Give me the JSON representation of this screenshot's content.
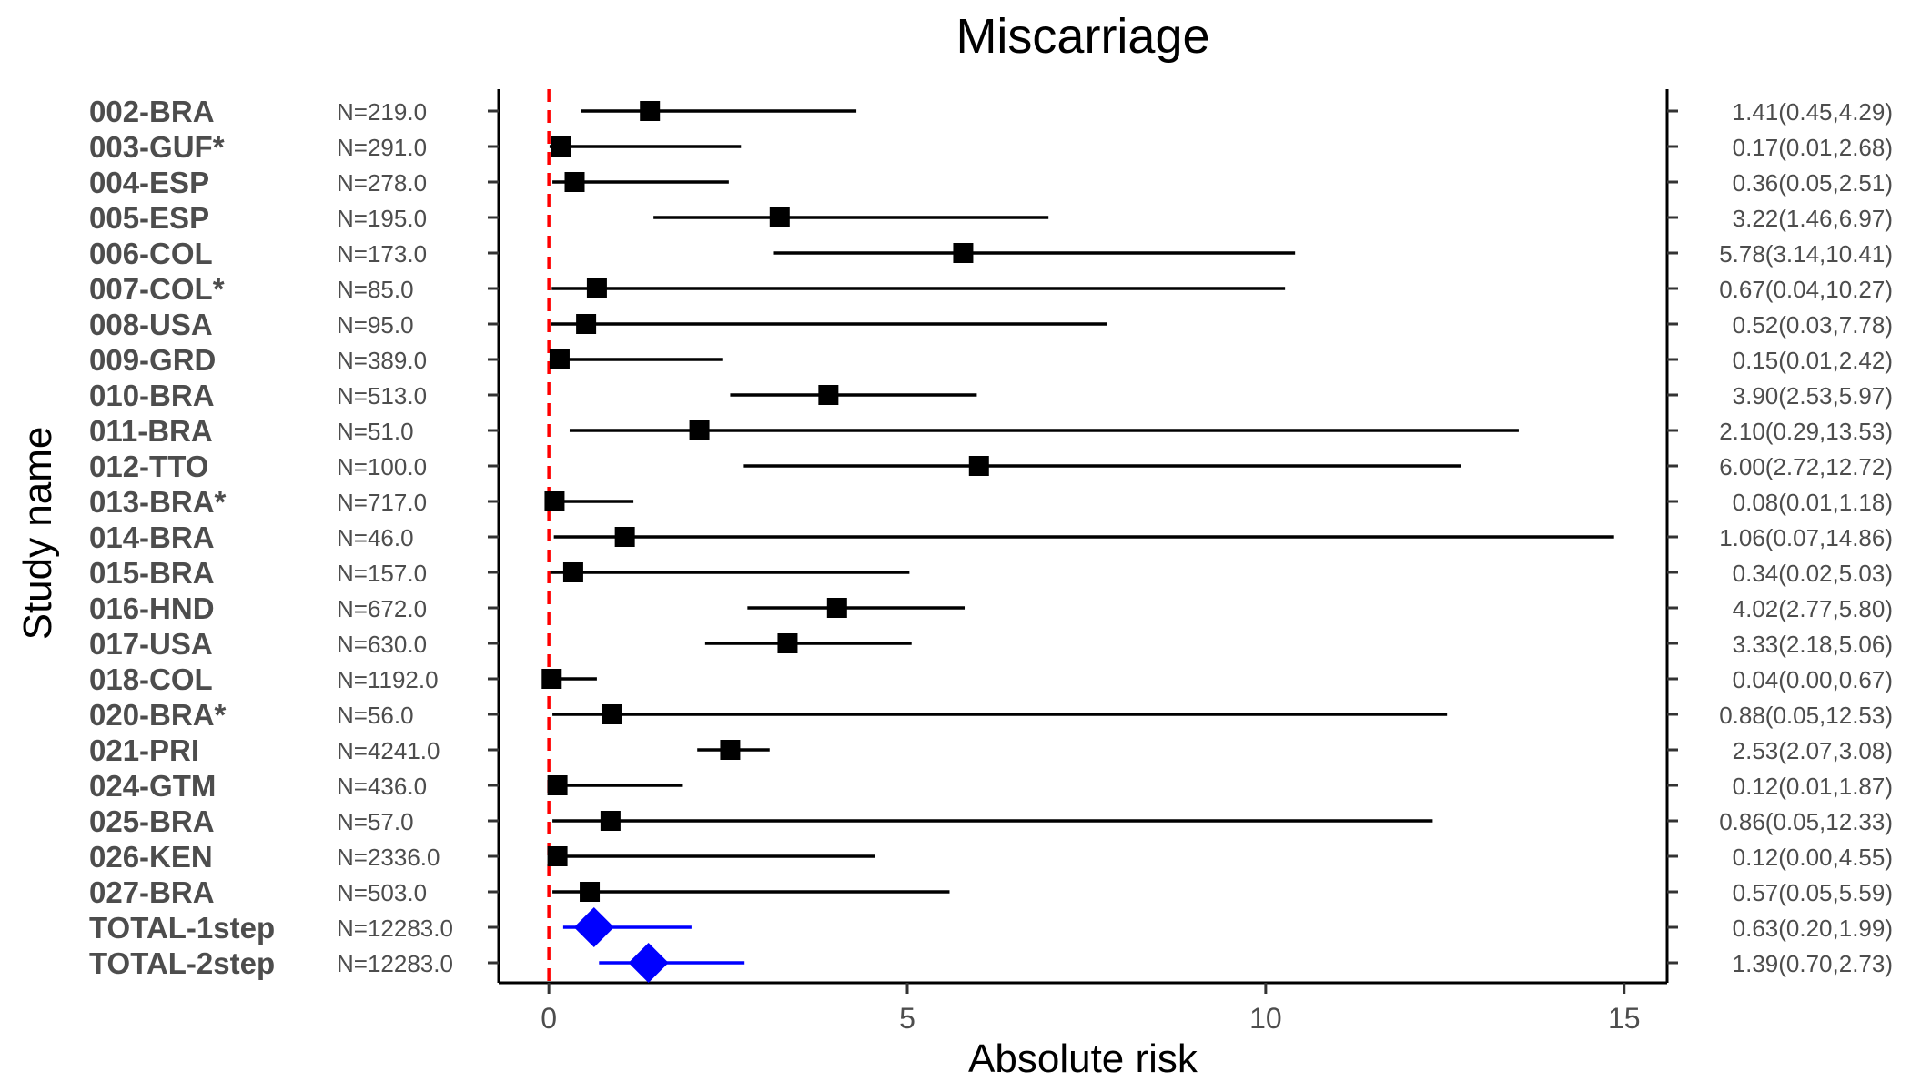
{
  "chart_data": {
    "type": "forest",
    "title": "Miscarriage",
    "xlabel": "Absolute risk",
    "ylabel": "Study name",
    "xlim": [
      -0.7,
      15.6
    ],
    "xticks": [
      "0",
      "5",
      "10",
      "15"
    ],
    "reference_line": 0,
    "colors": {
      "study": "#000000",
      "total": "#0000ff",
      "reference": "#ff0000"
    },
    "studies": [
      {
        "name": "002-BRA",
        "n": "N=219.0",
        "est": 1.41,
        "lo": 0.45,
        "hi": 4.29,
        "label": "1.41(0.45,4.29)"
      },
      {
        "name": "003-GUF*",
        "n": "N=291.0",
        "est": 0.17,
        "lo": 0.01,
        "hi": 2.68,
        "label": "0.17(0.01,2.68)"
      },
      {
        "name": "004-ESP",
        "n": "N=278.0",
        "est": 0.36,
        "lo": 0.05,
        "hi": 2.51,
        "label": "0.36(0.05,2.51)"
      },
      {
        "name": "005-ESP",
        "n": "N=195.0",
        "est": 3.22,
        "lo": 1.46,
        "hi": 6.97,
        "label": "3.22(1.46,6.97)"
      },
      {
        "name": "006-COL",
        "n": "N=173.0",
        "est": 5.78,
        "lo": 3.14,
        "hi": 10.41,
        "label": "5.78(3.14,10.41)"
      },
      {
        "name": "007-COL*",
        "n": "N=85.0",
        "est": 0.67,
        "lo": 0.04,
        "hi": 10.27,
        "label": "0.67(0.04,10.27)"
      },
      {
        "name": "008-USA",
        "n": "N=95.0",
        "est": 0.52,
        "lo": 0.03,
        "hi": 7.78,
        "label": "0.52(0.03,7.78)"
      },
      {
        "name": "009-GRD",
        "n": "N=389.0",
        "est": 0.15,
        "lo": 0.01,
        "hi": 2.42,
        "label": "0.15(0.01,2.42)"
      },
      {
        "name": "010-BRA",
        "n": "N=513.0",
        "est": 3.9,
        "lo": 2.53,
        "hi": 5.97,
        "label": "3.90(2.53,5.97)"
      },
      {
        "name": "011-BRA",
        "n": "N=51.0",
        "est": 2.1,
        "lo": 0.29,
        "hi": 13.53,
        "label": "2.10(0.29,13.53)"
      },
      {
        "name": "012-TTO",
        "n": "N=100.0",
        "est": 6.0,
        "lo": 2.72,
        "hi": 12.72,
        "label": "6.00(2.72,12.72)"
      },
      {
        "name": "013-BRA*",
        "n": "N=717.0",
        "est": 0.08,
        "lo": 0.01,
        "hi": 1.18,
        "label": "0.08(0.01,1.18)"
      },
      {
        "name": "014-BRA",
        "n": "N=46.0",
        "est": 1.06,
        "lo": 0.07,
        "hi": 14.86,
        "label": "1.06(0.07,14.86)"
      },
      {
        "name": "015-BRA",
        "n": "N=157.0",
        "est": 0.34,
        "lo": 0.02,
        "hi": 5.03,
        "label": "0.34(0.02,5.03)"
      },
      {
        "name": "016-HND",
        "n": "N=672.0",
        "est": 4.02,
        "lo": 2.77,
        "hi": 5.8,
        "label": "4.02(2.77,5.80)"
      },
      {
        "name": "017-USA",
        "n": "N=630.0",
        "est": 3.33,
        "lo": 2.18,
        "hi": 5.06,
        "label": "3.33(2.18,5.06)"
      },
      {
        "name": "018-COL",
        "n": "N=1192.0",
        "est": 0.04,
        "lo": 0.0,
        "hi": 0.67,
        "label": "0.04(0.00,0.67)"
      },
      {
        "name": "020-BRA*",
        "n": "N=56.0",
        "est": 0.88,
        "lo": 0.05,
        "hi": 12.53,
        "label": "0.88(0.05,12.53)"
      },
      {
        "name": "021-PRI",
        "n": "N=4241.0",
        "est": 2.53,
        "lo": 2.07,
        "hi": 3.08,
        "label": "2.53(2.07,3.08)"
      },
      {
        "name": "024-GTM",
        "n": "N=436.0",
        "est": 0.12,
        "lo": 0.01,
        "hi": 1.87,
        "label": "0.12(0.01,1.87)"
      },
      {
        "name": "025-BRA",
        "n": "N=57.0",
        "est": 0.86,
        "lo": 0.05,
        "hi": 12.33,
        "label": "0.86(0.05,12.33)"
      },
      {
        "name": "026-KEN",
        "n": "N=2336.0",
        "est": 0.12,
        "lo": 0.0,
        "hi": 4.55,
        "label": "0.12(0.00,4.55)"
      },
      {
        "name": "027-BRA",
        "n": "N=503.0",
        "est": 0.57,
        "lo": 0.05,
        "hi": 5.59,
        "label": "0.57(0.05,5.59)"
      },
      {
        "name": "TOTAL-1step",
        "n": "N=12283.0",
        "est": 0.63,
        "lo": 0.2,
        "hi": 1.99,
        "label": "0.63(0.20,1.99)",
        "total": true
      },
      {
        "name": "TOTAL-2step",
        "n": "N=12283.0",
        "est": 1.39,
        "lo": 0.7,
        "hi": 2.73,
        "label": "1.39(0.70,2.73)",
        "total": true
      }
    ]
  }
}
